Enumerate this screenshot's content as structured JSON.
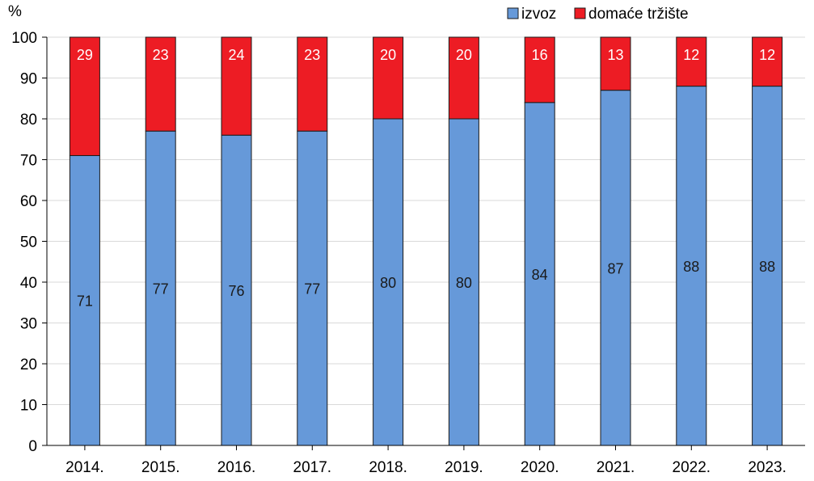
{
  "chart_data": {
    "type": "bar",
    "stacked": true,
    "title": "",
    "xlabel": "",
    "ylabel": "%",
    "ylim": [
      0,
      100
    ],
    "yticks": [
      0,
      10,
      20,
      30,
      40,
      50,
      60,
      70,
      80,
      90,
      100
    ],
    "grid": true,
    "legend_position": "top-right",
    "categories": [
      "2014.",
      "2015.",
      "2016.",
      "2017.",
      "2018.",
      "2019.",
      "2020.",
      "2021.",
      "2022.",
      "2023."
    ],
    "series": [
      {
        "name": "izvoz",
        "color": "#6699D9",
        "label_color": "#1a1a1a",
        "values": [
          71,
          77,
          76,
          77,
          80,
          80,
          84,
          87,
          88,
          88
        ]
      },
      {
        "name": "domaće tržište",
        "color": "#ED1C24",
        "label_color": "#ffffff",
        "values": [
          29,
          23,
          24,
          23,
          20,
          20,
          16,
          13,
          12,
          12
        ]
      }
    ]
  }
}
